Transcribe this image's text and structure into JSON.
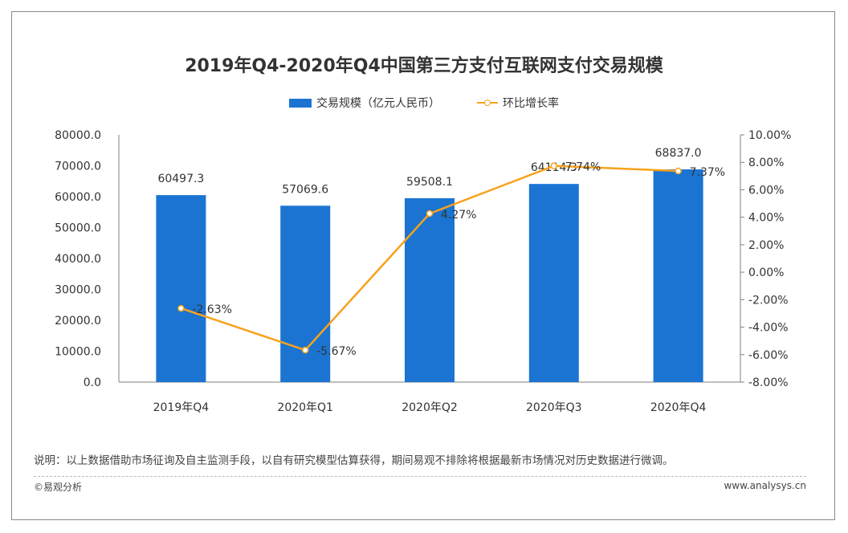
{
  "page": {
    "title": "2019年Q4-2020年Q4中国第三方支付互联网支付交易规模",
    "note": "说明：以上数据借助市场征询及自主监测手段，以自有研究模型估算获得，期间易观不排除将根据最新市场情况对历史数据进行微调。",
    "copyright": "©易观分析",
    "website": "www.analysys.cn"
  },
  "colors": {
    "bar": "#1b74d2",
    "line": "#f7a21b",
    "axis": "#7f7f7f",
    "text": "#333333"
  },
  "chart_data": {
    "type": "bar",
    "title": "2019年Q4-2020年Q4中国第三方支付互联网支付交易规模",
    "categories": [
      "2019年Q4",
      "2020年Q1",
      "2020年Q2",
      "2020年Q3",
      "2020年Q4"
    ],
    "series": [
      {
        "name": "交易规模（亿元人民币）",
        "type": "bar",
        "axis": "left",
        "values": [
          60497.3,
          57069.6,
          59508.1,
          64114.3,
          68837.0
        ],
        "labels": [
          "60497.3",
          "57069.6",
          "59508.1",
          "64114.3",
          "68837.0"
        ]
      },
      {
        "name": "环比增长率",
        "type": "line",
        "axis": "right",
        "values": [
          -2.63,
          -5.67,
          4.27,
          7.74,
          7.37
        ],
        "labels": [
          "-2.63%",
          "-5.67%",
          "4.27%",
          "7.74%",
          "7.37%"
        ]
      }
    ],
    "ylim_left": [
      0,
      80000
    ],
    "ylim_right": [
      -8,
      10
    ],
    "left_ticks": [
      "0.0",
      "10000.0",
      "20000.0",
      "30000.0",
      "40000.0",
      "50000.0",
      "60000.0",
      "70000.0",
      "80000.0"
    ],
    "right_ticks": [
      "-8.00%",
      "-6.00%",
      "-4.00%",
      "-2.00%",
      "0.00%",
      "2.00%",
      "4.00%",
      "6.00%",
      "8.00%",
      "10.00%"
    ],
    "legend_position": "top-center",
    "grid": false
  }
}
